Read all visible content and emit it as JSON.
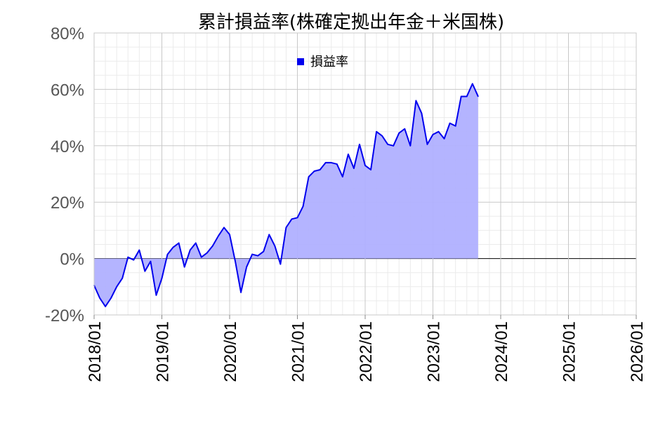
{
  "chart_data": {
    "type": "area",
    "title": "累計損益率(株確定拠出年金＋米国株)",
    "legend": {
      "label": "損益率",
      "placement": "top-center"
    },
    "colors": {
      "line": "#0000ee",
      "fill": "#b0b0ff",
      "legend_marker": "#0000ee",
      "zero_line": "#000000",
      "grid": "#d0d0d0"
    },
    "grid": true,
    "ylim": [
      -20,
      80
    ],
    "y_ticks": [
      "-20%",
      "0%",
      "20%",
      "40%",
      "60%",
      "80%"
    ],
    "x_ticks": [
      "2018/01",
      "2019/01",
      "2020/01",
      "2021/01",
      "2022/01",
      "2023/01",
      "2024/01",
      "2025/01",
      "2026/01"
    ],
    "xlim": [
      "2018-01",
      "2026-01"
    ],
    "series": [
      {
        "name": "損益率",
        "x": [
          "2018-01",
          "2018-02",
          "2018-03",
          "2018-04",
          "2018-05",
          "2018-06",
          "2018-07",
          "2018-08",
          "2018-09",
          "2018-10",
          "2018-11",
          "2018-12",
          "2019-01",
          "2019-02",
          "2019-03",
          "2019-04",
          "2019-05",
          "2019-06",
          "2019-07",
          "2019-08",
          "2019-09",
          "2019-10",
          "2019-11",
          "2019-12",
          "2020-01",
          "2020-02",
          "2020-03",
          "2020-04",
          "2020-05",
          "2020-06",
          "2020-07",
          "2020-08",
          "2020-09",
          "2020-10",
          "2020-11",
          "2020-12",
          "2021-01",
          "2021-02",
          "2021-03",
          "2021-04",
          "2021-05",
          "2021-06",
          "2021-07",
          "2021-08",
          "2021-09",
          "2021-10",
          "2021-11",
          "2021-12",
          "2022-01",
          "2022-02",
          "2022-03",
          "2022-04",
          "2022-05",
          "2022-06",
          "2022-07",
          "2022-08",
          "2022-09",
          "2022-10",
          "2022-11",
          "2022-12",
          "2023-01",
          "2023-02",
          "2023-03",
          "2023-04",
          "2023-05",
          "2023-06",
          "2023-07",
          "2023-08",
          "2023-09"
        ],
        "values": [
          -9.5,
          -14,
          -17,
          -14,
          -10,
          -7,
          0.5,
          -0.5,
          3,
          -4.5,
          -1,
          -13,
          -7,
          1.5,
          4,
          5.5,
          -3,
          3,
          5.5,
          0.5,
          2,
          4.5,
          8,
          11,
          8.5,
          -1,
          -12,
          -3,
          1.5,
          1,
          2.5,
          8.5,
          4.5,
          -2,
          11,
          14,
          14.5,
          18.5,
          29,
          31,
          31.5,
          34,
          34,
          33.5,
          29,
          37,
          32,
          40.5,
          33,
          31.5,
          45,
          43.5,
          40.5,
          40,
          44.5,
          46,
          40,
          56,
          51.5,
          40.5,
          44,
          45,
          42.5,
          48,
          47,
          57.5,
          57.5,
          62,
          57.5
        ]
      }
    ]
  }
}
